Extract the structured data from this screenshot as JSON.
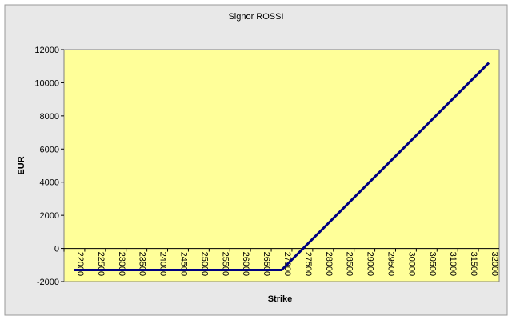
{
  "chart_data": {
    "type": "line",
    "title": "Signor ROSSI",
    "x_label": "Strike",
    "y_label": "EUR",
    "categories": [
      "22000",
      "22500",
      "23000",
      "23500",
      "24000",
      "24500",
      "25000",
      "25500",
      "26000",
      "26500",
      "27000",
      "27500",
      "28000",
      "28500",
      "29000",
      "29500",
      "30000",
      "30500",
      "31000",
      "31500",
      "32000"
    ],
    "series": [
      {
        "name": "EUR",
        "color": "#000080",
        "values": [
          -1300,
          -1300,
          -1300,
          -1300,
          -1300,
          -1300,
          -1300,
          -1300,
          -1300,
          -1300,
          -1300,
          -50,
          1200,
          2450,
          3700,
          4950,
          6200,
          7450,
          8700,
          9950,
          11200
        ]
      }
    ],
    "ylim": [
      -2000,
      12000
    ],
    "yticks": [
      -2000,
      0,
      2000,
      4000,
      6000,
      8000,
      10000,
      12000
    ],
    "plot_background": "#ffff99",
    "grid": false
  }
}
